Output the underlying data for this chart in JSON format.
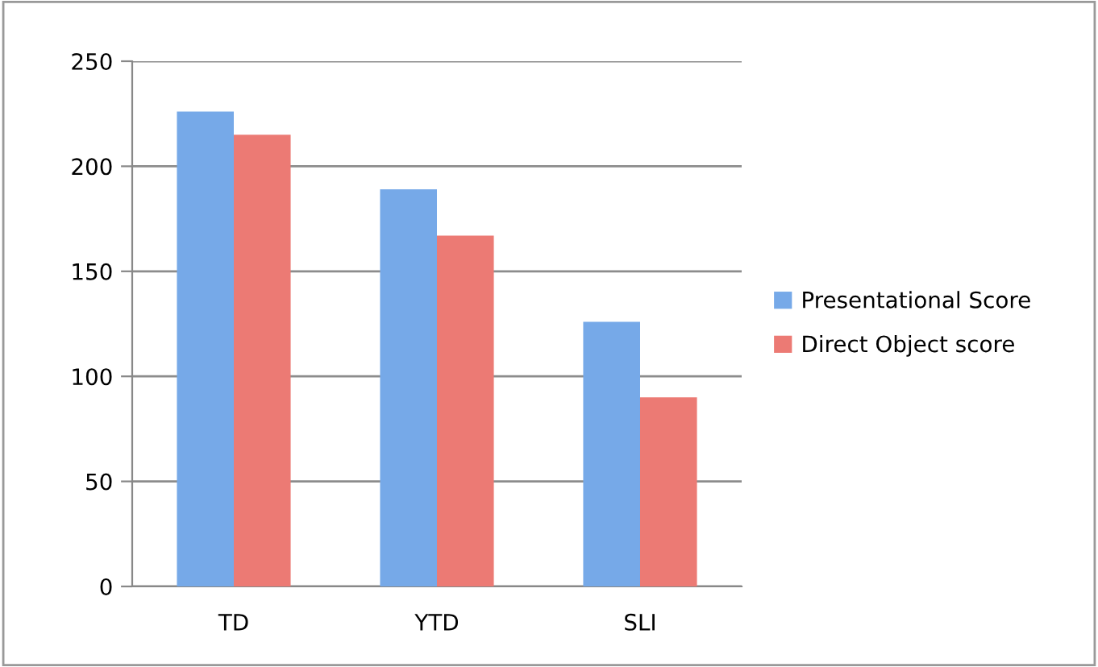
{
  "chart_data": {
    "type": "bar",
    "categories": [
      "TD",
      "YTD",
      "SLI"
    ],
    "series": [
      {
        "name": "Presentational Score",
        "color": "#76a9e8",
        "values": [
          226,
          189,
          126
        ]
      },
      {
        "name": "Direct Object score",
        "color": "#ec7a74",
        "values": [
          215,
          167,
          90
        ]
      }
    ],
    "ylim": [
      0,
      250
    ],
    "yticks": [
      0,
      50,
      100,
      150,
      200,
      250
    ],
    "grid": "y",
    "legend": "right"
  }
}
